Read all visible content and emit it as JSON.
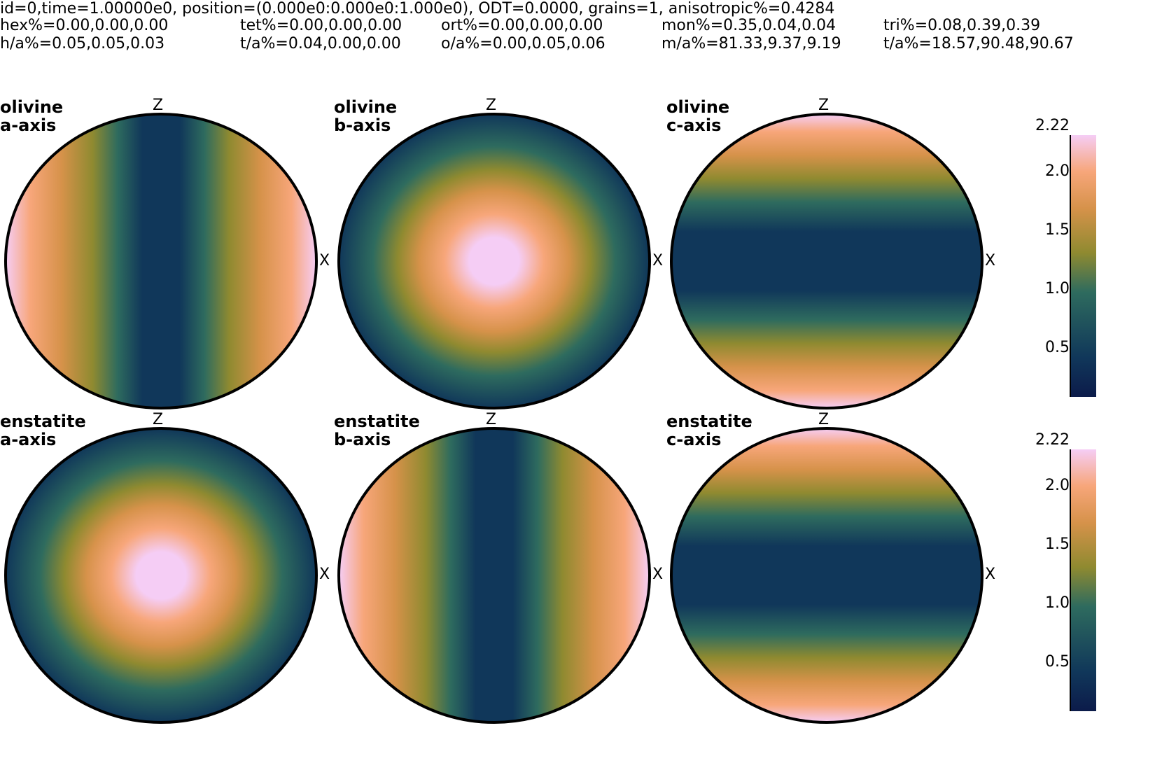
{
  "header": {
    "line1": "id=0,time=1.00000e0, position=(0.000e0:0.000e0:1.000e0), ODT=0.0000, grains=1, anisotropic%=0.4284",
    "hex": "hex%=0.00,0.00,0.00",
    "tet": "tet%=0.00,0.00,0.00",
    "ort": "ort%=0.00,0.00,0.00",
    "mon": "mon%=0.35,0.04,0.04",
    "tri": "tri%=0.08,0.39,0.39",
    "ha": "h/a%=0.05,0.05,0.03",
    "ta1": "t/a%=0.04,0.00,0.00",
    "oa": "o/a%=0.00,0.05,0.06",
    "ma": "m/a%=81.33,9.37,9.19",
    "ta2": "t/a%=18.57,90.48,90.67"
  },
  "colors": {
    "ramp": [
      "#0c1b4a",
      "#10375a",
      "#2e6b5e",
      "#8f8a30",
      "#d6924a",
      "#f7a67a",
      "#f5cdf5"
    ]
  },
  "chart_data": [
    {
      "type": "heatmap",
      "projection": "pole figure (circular)",
      "title": "olivine\na-axis",
      "top_label": "Z",
      "right_label": "X",
      "peak": "left and right edges",
      "colorbar": {
        "max_label": "2.22",
        "ticks": [
          "2.0",
          "1.5",
          "1.0",
          "0.5"
        ],
        "range": [
          0.0,
          2.22
        ]
      }
    },
    {
      "type": "heatmap",
      "projection": "pole figure (circular)",
      "title": "olivine\nb-axis",
      "top_label": "Z",
      "right_label": "X",
      "peak": "center"
    },
    {
      "type": "heatmap",
      "projection": "pole figure (circular)",
      "title": "olivine\nc-axis",
      "top_label": "Z",
      "right_label": "X",
      "peak": "top and bottom edges"
    },
    {
      "type": "heatmap",
      "projection": "pole figure (circular)",
      "title": "enstatite\na-axis",
      "top_label": "Z",
      "right_label": "X",
      "peak": "center",
      "colorbar": {
        "max_label": "2.22",
        "ticks": [
          "2.0",
          "1.5",
          "1.0",
          "0.5"
        ],
        "range": [
          0.0,
          2.22
        ]
      }
    },
    {
      "type": "heatmap",
      "projection": "pole figure (circular)",
      "title": "enstatite\nb-axis",
      "top_label": "Z",
      "right_label": "X",
      "peak": "left and right edges"
    },
    {
      "type": "heatmap",
      "projection": "pole figure (circular)",
      "title": "enstatite\nc-axis",
      "top_label": "Z",
      "right_label": "X",
      "peak": "top and bottom edges"
    }
  ]
}
